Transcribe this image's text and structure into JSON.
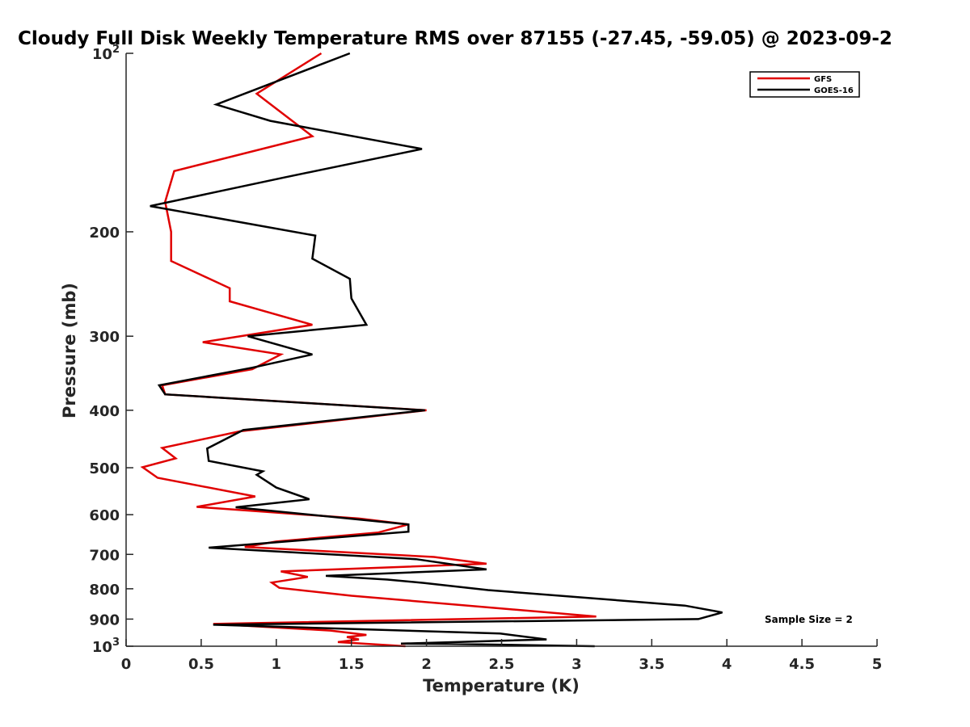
{
  "chart_data": {
    "type": "line",
    "title": "Cloudy Full Disk Weekly Temperature RMS over 87155 (-27.45, -59.05) @ 2023-09-2",
    "xlabel": "Temperature (K)",
    "ylabel": "Pressure (mb)",
    "xlim": [
      0,
      5
    ],
    "ylim": [
      100,
      1000
    ],
    "yscale": "log",
    "y_reversed": true,
    "x_ticks": [
      "0",
      "0.5",
      "1",
      "1.5",
      "2",
      "2.5",
      "3",
      "3.5",
      "4",
      "4.5",
      "5"
    ],
    "y_ticks": [
      {
        "value": 100,
        "base": "10",
        "exp": "2"
      },
      {
        "value": 200,
        "label": "200"
      },
      {
        "value": 300,
        "label": "300"
      },
      {
        "value": 400,
        "label": "400"
      },
      {
        "value": 500,
        "label": "500"
      },
      {
        "value": 600,
        "label": "600"
      },
      {
        "value": 700,
        "label": "700"
      },
      {
        "value": 800,
        "label": "800"
      },
      {
        "value": 900,
        "label": "900"
      },
      {
        "value": 1000,
        "base": "10",
        "exp": "3"
      }
    ],
    "legend_position": "top-right",
    "annotation": "Sample Size = 2",
    "series": [
      {
        "name": "GFS",
        "color": "#e00000",
        "points": [
          [
            1.3,
            100
          ],
          [
            0.87,
            117
          ],
          [
            1.24,
            138
          ],
          [
            0.32,
            158
          ],
          [
            0.26,
            178
          ],
          [
            0.3,
            200
          ],
          [
            0.3,
            224
          ],
          [
            0.69,
            249
          ],
          [
            0.69,
            262
          ],
          [
            1.24,
            287
          ],
          [
            0.51,
            307
          ],
          [
            1.03,
            322
          ],
          [
            0.84,
            341
          ],
          [
            0.24,
            363
          ],
          [
            0.26,
            376
          ],
          [
            2.0,
            400
          ],
          [
            0.76,
            434
          ],
          [
            0.24,
            463
          ],
          [
            0.33,
            482
          ],
          [
            0.11,
            499
          ],
          [
            0.21,
            520
          ],
          [
            0.86,
            559
          ],
          [
            0.47,
            582
          ],
          [
            1.55,
            609
          ],
          [
            1.88,
            623
          ],
          [
            1.68,
            643
          ],
          [
            1.0,
            666
          ],
          [
            0.79,
            680
          ],
          [
            2.05,
            707
          ],
          [
            2.4,
            726
          ],
          [
            1.03,
            748
          ],
          [
            1.21,
            764
          ],
          [
            0.97,
            781
          ],
          [
            1.02,
            797
          ],
          [
            1.5,
            822
          ],
          [
            3.13,
            891
          ],
          [
            0.58,
            917
          ],
          [
            1.36,
            941
          ],
          [
            1.6,
            957
          ],
          [
            1.47,
            965
          ],
          [
            1.55,
            974
          ],
          [
            1.41,
            984
          ],
          [
            1.86,
            1000
          ]
        ]
      },
      {
        "name": "GOES-16",
        "color": "#000000",
        "points": [
          [
            1.49,
            100
          ],
          [
            0.6,
            122
          ],
          [
            0.96,
            130
          ],
          [
            1.97,
            145
          ],
          [
            1.05,
            162
          ],
          [
            0.16,
            181
          ],
          [
            1.26,
            203
          ],
          [
            1.24,
            222
          ],
          [
            1.49,
            240
          ],
          [
            1.5,
            259
          ],
          [
            1.6,
            287
          ],
          [
            0.81,
            300
          ],
          [
            1.24,
            322
          ],
          [
            0.84,
            339
          ],
          [
            0.22,
            363
          ],
          [
            0.26,
            376
          ],
          [
            1.99,
            400
          ],
          [
            0.78,
            432
          ],
          [
            0.54,
            464
          ],
          [
            0.55,
            487
          ],
          [
            0.91,
            507
          ],
          [
            0.87,
            514
          ],
          [
            1.0,
            540
          ],
          [
            1.22,
            565
          ],
          [
            0.73,
            583
          ],
          [
            1.88,
            623
          ],
          [
            1.88,
            641
          ],
          [
            0.55,
            682
          ],
          [
            1.93,
            713
          ],
          [
            2.4,
            742
          ],
          [
            1.33,
            761
          ],
          [
            1.74,
            772
          ],
          [
            1.98,
            782
          ],
          [
            2.41,
            804
          ],
          [
            3.72,
            854
          ],
          [
            3.97,
            877
          ],
          [
            3.81,
            900
          ],
          [
            0.58,
            920
          ],
          [
            2.49,
            952
          ],
          [
            2.8,
            974
          ],
          [
            1.83,
            990
          ],
          [
            2.15,
            991
          ],
          [
            3.12,
            1000
          ]
        ]
      }
    ]
  }
}
